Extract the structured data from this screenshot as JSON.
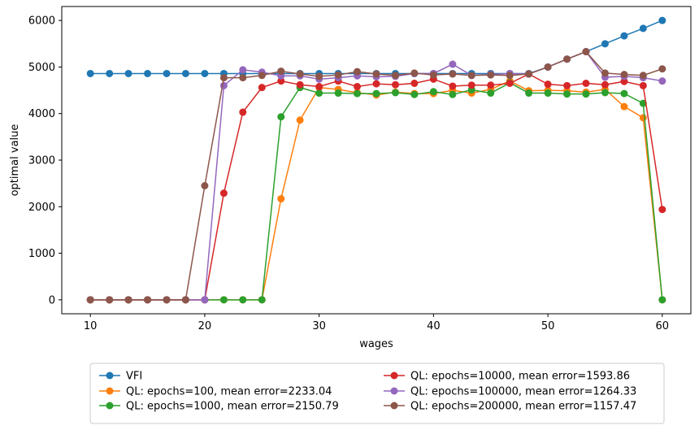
{
  "chart_data": {
    "type": "line",
    "xlabel": "wages",
    "ylabel": "optimal value",
    "xlim": [
      7.5,
      62.5
    ],
    "ylim": [
      -300,
      6300
    ],
    "x_ticks": [
      10,
      20,
      30,
      40,
      50,
      60
    ],
    "y_ticks": [
      0,
      1000,
      2000,
      3000,
      4000,
      5000,
      6000
    ],
    "grid": false,
    "legend_position": "bottom-center",
    "x": [
      10.0,
      11.67,
      13.33,
      15.0,
      16.67,
      18.33,
      20.0,
      21.67,
      23.33,
      25.0,
      26.67,
      28.33,
      30.0,
      31.67,
      33.33,
      35.0,
      36.67,
      38.33,
      40.0,
      41.67,
      43.33,
      45.0,
      46.67,
      48.33,
      50.0,
      51.67,
      53.33,
      55.0,
      56.67,
      58.33,
      60.0
    ],
    "series": [
      {
        "name": "VFI",
        "color": "#1f77b4",
        "values": [
          4860,
          4860,
          4860,
          4860,
          4860,
          4860,
          4860,
          4860,
          4860,
          4860,
          4860,
          4860,
          4860,
          4860,
          4860,
          4860,
          4860,
          4860,
          4860,
          4860,
          4860,
          4860,
          4860,
          4860,
          5000,
          5170,
          5330,
          5500,
          5670,
          5830,
          6000
        ]
      },
      {
        "name": "QL: epochs=100, mean error=2233.04",
        "color": "#ff7f0e",
        "values": [
          0,
          0,
          0,
          0,
          0,
          0,
          0,
          0,
          0,
          0,
          2170,
          3860,
          4560,
          4520,
          4450,
          4400,
          4460,
          4430,
          4430,
          4500,
          4440,
          4520,
          4700,
          4490,
          4500,
          4490,
          4460,
          4520,
          4150,
          3910,
          0
        ]
      },
      {
        "name": "QL: epochs=1000, mean error=2150.79",
        "color": "#2ca02c",
        "values": [
          0,
          0,
          0,
          0,
          0,
          0,
          0,
          0,
          0,
          0,
          3930,
          4560,
          4440,
          4440,
          4430,
          4430,
          4450,
          4410,
          4470,
          4410,
          4510,
          4440,
          4660,
          4440,
          4440,
          4420,
          4420,
          4450,
          4430,
          4220,
          0
        ]
      },
      {
        "name": "QL: epochs=10000, mean error=1593.86",
        "color": "#d62728",
        "values": [
          0,
          0,
          0,
          0,
          0,
          0,
          0,
          2290,
          4030,
          4560,
          4700,
          4620,
          4580,
          4700,
          4580,
          4640,
          4620,
          4650,
          4740,
          4590,
          4610,
          4610,
          4650,
          4850,
          4630,
          4600,
          4650,
          4620,
          4690,
          4600,
          1940
        ]
      },
      {
        "name": "QL: epochs=100000, mean error=1264.33",
        "color": "#9467bd",
        "values": [
          0,
          0,
          0,
          0,
          0,
          0,
          0,
          4600,
          4940,
          4890,
          4810,
          4810,
          4740,
          4770,
          4810,
          4790,
          4800,
          4860,
          4860,
          5060,
          4820,
          4840,
          4860,
          4850,
          5000,
          5170,
          5330,
          4780,
          4800,
          4770,
          4700
        ]
      },
      {
        "name": "QL: epochs=200000, mean error=1157.47",
        "color": "#8c564b",
        "values": [
          0,
          0,
          0,
          0,
          0,
          0,
          2450,
          4770,
          4770,
          4820,
          4910,
          4850,
          4800,
          4830,
          4900,
          4850,
          4820,
          4870,
          4830,
          4850,
          4820,
          4830,
          4820,
          4850,
          5000,
          5170,
          5330,
          4870,
          4840,
          4820,
          4960
        ]
      }
    ]
  }
}
